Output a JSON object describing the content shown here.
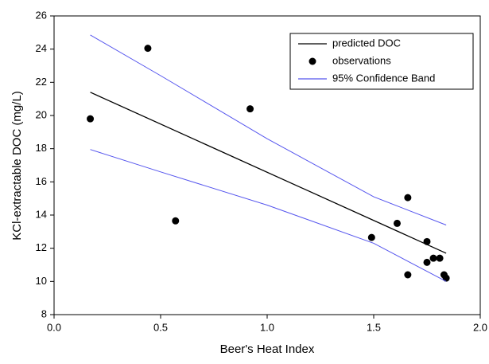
{
  "chart_data": {
    "type": "line",
    "x_label": "Beer's Heat Index",
    "y_label": "KCl-extractable DOC (mg/L)",
    "xlim": [
      0,
      2
    ],
    "ylim": [
      8,
      26
    ],
    "xticks": [
      {
        "value": 0,
        "label": "0.0"
      },
      0.5,
      {
        "value": 1,
        "label": "1.0"
      },
      1.5,
      {
        "value": 2,
        "label": "2.0"
      }
    ],
    "yticks": [
      8,
      10,
      12,
      14,
      16,
      18,
      20,
      22,
      24,
      26
    ],
    "legend": "upper right",
    "series": [
      {
        "name": "predicted DOC",
        "type": "line",
        "color": "#000000",
        "x": [
          0.17,
          1.84
        ],
        "values": [
          21.4,
          11.7
        ]
      },
      {
        "name": "observations",
        "type": "scatter",
        "color": "#000000",
        "x": [
          0.17,
          0.44,
          0.57,
          0.92,
          1.49,
          1.61,
          1.66,
          1.66,
          1.75,
          1.75,
          1.78,
          1.81,
          1.83,
          1.84
        ],
        "values": [
          19.8,
          24.05,
          13.65,
          20.4,
          12.65,
          13.5,
          15.05,
          10.4,
          12.4,
          11.15,
          11.4,
          11.4,
          10.4,
          10.2
        ]
      },
      {
        "name": "95% Confidence Band",
        "type": "band",
        "color": "#5555ee",
        "x": [
          0.17,
          0.5,
          1.0,
          1.5,
          1.84
        ],
        "upper": [
          24.85,
          22.4,
          18.6,
          15.1,
          13.4
        ],
        "lower": [
          17.95,
          16.6,
          14.6,
          12.3,
          10.0
        ]
      }
    ]
  }
}
